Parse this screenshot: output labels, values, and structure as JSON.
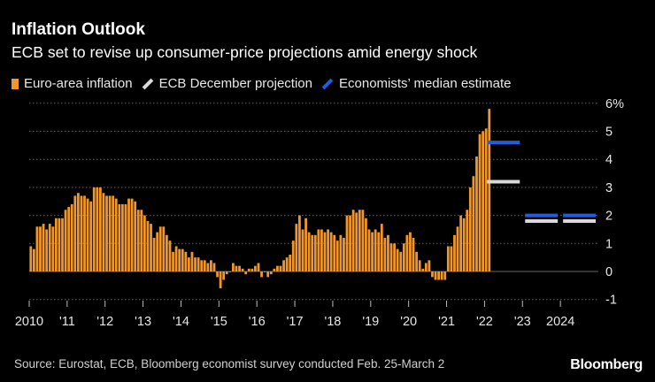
{
  "header": {
    "title": "Inflation Outlook",
    "subtitle": "ECB set to revise up consumer-price projections amid energy shock"
  },
  "footer": {
    "source": "Source: Eurostat, ECB, Bloomberg economist survey conducted Feb. 25-March 2",
    "brand": "Bloomberg"
  },
  "colors": {
    "background": "#000000",
    "bars": "#f0962a",
    "projection": "#d9d9d9",
    "estimate": "#1f5ed8",
    "grid": "#666666"
  },
  "chart_data": {
    "type": "bar",
    "title": "Inflation Outlook",
    "subtitle": "ECB set to revise up consumer-price projections amid energy shock",
    "xlabel": "",
    "ylabel": "",
    "ylim": [
      -1,
      6
    ],
    "yticks": [
      -1,
      0,
      1,
      2,
      3,
      4,
      5,
      6
    ],
    "ytick_labels": [
      "-1",
      "0",
      "1",
      "2",
      "3",
      "4",
      "5",
      "6%"
    ],
    "xticks": [
      {
        "year": 2010,
        "label": "2010"
      },
      {
        "year": 2011,
        "label": "'11"
      },
      {
        "year": 2012,
        "label": "'12"
      },
      {
        "year": 2013,
        "label": "'13"
      },
      {
        "year": 2014,
        "label": "'14"
      },
      {
        "year": 2015,
        "label": "'15"
      },
      {
        "year": 2016,
        "label": "'16"
      },
      {
        "year": 2017,
        "label": "'17"
      },
      {
        "year": 2018,
        "label": "'18"
      },
      {
        "year": 2019,
        "label": "'19"
      },
      {
        "year": 2020,
        "label": "'20"
      },
      {
        "year": 2021,
        "label": "'21"
      },
      {
        "year": 2022,
        "label": "'22"
      },
      {
        "year": 2023,
        "label": "'23"
      },
      {
        "year": 2024,
        "label": "2024"
      }
    ],
    "x_range": [
      2010,
      2025
    ],
    "grid": true,
    "legend_position": "top-left",
    "legend": [
      {
        "label": "Euro-area inflation",
        "kind": "bar"
      },
      {
        "label": "ECB December projection",
        "kind": "line"
      },
      {
        "label": "Economists’ median estimate",
        "kind": "line"
      }
    ],
    "series": [
      {
        "name": "Euro-area inflation",
        "kind": "monthly-bars",
        "start": "2010-01",
        "values": [
          0.9,
          0.8,
          1.6,
          1.6,
          1.7,
          1.5,
          1.7,
          1.6,
          1.9,
          1.9,
          1.9,
          2.2,
          2.3,
          2.4,
          2.7,
          2.8,
          2.7,
          2.7,
          2.6,
          2.5,
          3.0,
          3.0,
          3.0,
          2.8,
          2.7,
          2.7,
          2.7,
          2.6,
          2.4,
          2.4,
          2.4,
          2.6,
          2.6,
          2.5,
          2.2,
          2.2,
          2.0,
          1.8,
          1.7,
          1.2,
          1.4,
          1.6,
          1.6,
          1.3,
          1.1,
          0.7,
          0.9,
          0.8,
          0.8,
          0.7,
          0.5,
          0.7,
          0.5,
          0.5,
          0.4,
          0.4,
          0.3,
          0.4,
          0.3,
          -0.2,
          -0.6,
          -0.3,
          -0.1,
          0.0,
          0.3,
          0.2,
          0.2,
          0.1,
          -0.1,
          0.1,
          0.1,
          0.2,
          0.3,
          -0.2,
          0.0,
          -0.2,
          -0.1,
          0.1,
          0.2,
          0.2,
          0.4,
          0.5,
          0.6,
          1.1,
          1.7,
          2.0,
          1.5,
          1.9,
          1.4,
          1.3,
          1.3,
          1.5,
          1.5,
          1.4,
          1.5,
          1.4,
          1.3,
          1.1,
          1.3,
          1.2,
          2.0,
          2.0,
          2.2,
          2.1,
          2.2,
          2.2,
          1.9,
          1.5,
          1.4,
          1.5,
          1.4,
          1.7,
          1.2,
          1.3,
          1.0,
          1.0,
          0.8,
          0.7,
          1.0,
          1.3,
          1.4,
          1.2,
          0.7,
          0.4,
          0.1,
          0.3,
          0.4,
          -0.2,
          -0.3,
          -0.3,
          -0.3,
          -0.3,
          0.9,
          0.9,
          1.3,
          1.6,
          2.0,
          1.9,
          2.2,
          3.0,
          3.4,
          4.1,
          4.9,
          5.0,
          5.1,
          5.8
        ]
      },
      {
        "name": "ECB December projection",
        "kind": "annual-lines",
        "points": [
          {
            "year": 2022,
            "value": 3.2
          },
          {
            "year": 2023,
            "value": 1.8
          },
          {
            "year": 2024,
            "value": 1.8
          }
        ]
      },
      {
        "name": "Economists’ median estimate",
        "kind": "annual-lines",
        "points": [
          {
            "year": 2022,
            "value": 4.6
          },
          {
            "year": 2023,
            "value": 2.0
          },
          {
            "year": 2024,
            "value": 2.0
          }
        ]
      }
    ]
  }
}
